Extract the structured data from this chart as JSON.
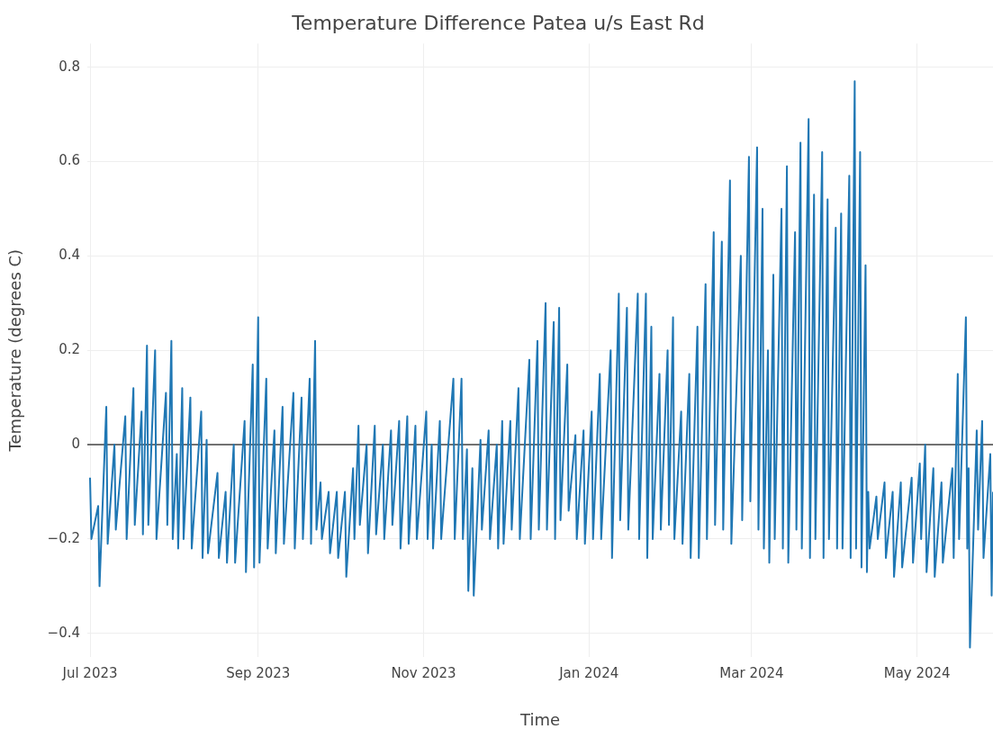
{
  "chart_data": {
    "type": "line",
    "title": "Temperature Difference Patea u/s East Rd",
    "xlabel": "Time",
    "ylabel": "Temperature (degrees C)",
    "xlim": [
      "2023-06-30",
      "2024-05-29"
    ],
    "xticks": [
      {
        "value": "2023-07-01",
        "label": "Jul 2023"
      },
      {
        "value": "2023-09-01",
        "label": "Sep 2023"
      },
      {
        "value": "2023-11-01",
        "label": "Nov 2023"
      },
      {
        "value": "2024-01-01",
        "label": "Jan 2024"
      },
      {
        "value": "2024-03-01",
        "label": "Mar 2024"
      },
      {
        "value": "2024-05-01",
        "label": "May 2024"
      }
    ],
    "ylim": [
      -0.45,
      0.85
    ],
    "yticks": [
      {
        "value": -0.4,
        "label": "−0.4"
      },
      {
        "value": -0.2,
        "label": "−0.2"
      },
      0,
      0.2,
      0.4,
      0.6,
      0.8
    ],
    "grid": true,
    "legend": false,
    "marker": "none",
    "line_style": "solid",
    "ref_lines": [
      {
        "axis": "y",
        "value": 0,
        "color": "#444444"
      }
    ],
    "series": [
      {
        "color": "#1f77b4",
        "x": [
          "2023-07-01T00:00",
          "2023-07-01T12:00",
          "2023-07-04T00:00",
          "2023-07-04T12:00",
          "2023-07-07T00:00",
          "2023-07-07T12:00",
          "2023-07-10T00:00",
          "2023-07-10T12:00",
          "2023-07-14T00:00",
          "2023-07-14T12:00",
          "2023-07-17T00:00",
          "2023-07-17T12:00",
          "2023-07-20T00:00",
          "2023-07-20T12:00",
          "2023-07-22T00:00",
          "2023-07-22T12:00",
          "2023-07-25T00:00",
          "2023-07-25T12:00",
          "2023-07-29T00:00",
          "2023-07-29T12:00",
          "2023-07-31T00:00",
          "2023-07-31T12:00",
          "2023-08-02T00:00",
          "2023-08-02T12:00",
          "2023-08-04T00:00",
          "2023-08-04T12:00",
          "2023-08-07T00:00",
          "2023-08-07T12:00",
          "2023-08-11T00:00",
          "2023-08-11T12:00",
          "2023-08-13T00:00",
          "2023-08-13T12:00",
          "2023-08-17T00:00",
          "2023-08-17T12:00",
          "2023-08-20T00:00",
          "2023-08-20T12:00",
          "2023-08-23T00:00",
          "2023-08-23T12:00",
          "2023-08-27T00:00",
          "2023-08-27T12:00",
          "2023-08-30T00:00",
          "2023-08-30T12:00",
          "2023-09-01T00:00",
          "2023-09-01T12:00",
          "2023-09-04T00:00",
          "2023-09-04T12:00",
          "2023-09-07T00:00",
          "2023-09-07T12:00",
          "2023-09-10T00:00",
          "2023-09-10T12:00",
          "2023-09-14T00:00",
          "2023-09-14T12:00",
          "2023-09-17T00:00",
          "2023-09-17T12:00",
          "2023-09-20T00:00",
          "2023-09-20T12:00",
          "2023-09-22T00:00",
          "2023-09-22T12:00",
          "2023-09-24T00:00",
          "2023-09-24T12:00",
          "2023-09-27T00:00",
          "2023-09-27T12:00",
          "2023-09-30T00:00",
          "2023-09-30T12:00",
          "2023-10-03T00:00",
          "2023-10-03T12:00",
          "2023-10-06T00:00",
          "2023-10-06T12:00",
          "2023-10-08T00:00",
          "2023-10-08T12:00",
          "2023-10-11T00:00",
          "2023-10-11T12:00",
          "2023-10-14T00:00",
          "2023-10-14T12:00",
          "2023-10-17T00:00",
          "2023-10-17T12:00",
          "2023-10-20T00:00",
          "2023-10-20T12:00",
          "2023-10-23T00:00",
          "2023-10-23T12:00",
          "2023-10-26T00:00",
          "2023-10-26T12:00",
          "2023-10-29T00:00",
          "2023-10-29T12:00",
          "2023-11-02T00:00",
          "2023-11-02T12:00",
          "2023-11-04T00:00",
          "2023-11-04T12:00",
          "2023-11-07T00:00",
          "2023-11-07T12:00",
          "2023-11-12T00:00",
          "2023-11-12T12:00",
          "2023-11-15T00:00",
          "2023-11-15T12:00",
          "2023-11-17T00:00",
          "2023-11-17T12:00",
          "2023-11-19T00:00",
          "2023-11-19T12:00",
          "2023-11-22T00:00",
          "2023-11-22T12:00",
          "2023-11-25T00:00",
          "2023-11-25T12:00",
          "2023-11-28T00:00",
          "2023-11-28T12:00",
          "2023-11-30T00:00",
          "2023-11-30T12:00",
          "2023-12-03T00:00",
          "2023-12-03T12:00",
          "2023-12-06T00:00",
          "2023-12-06T12:00",
          "2023-12-10T00:00",
          "2023-12-10T12:00",
          "2023-12-13T00:00",
          "2023-12-13T12:00",
          "2023-12-16T00:00",
          "2023-12-16T12:00",
          "2023-12-19T00:00",
          "2023-12-19T12:00",
          "2023-12-21T00:00",
          "2023-12-21T12:00",
          "2023-12-24T00:00",
          "2023-12-24T12:00",
          "2023-12-27T00:00",
          "2023-12-27T12:00",
          "2023-12-30T00:00",
          "2023-12-30T12:00",
          "2024-01-02T00:00",
          "2024-01-02T12:00",
          "2024-01-05T00:00",
          "2024-01-05T12:00",
          "2024-01-09T00:00",
          "2024-01-09T12:00",
          "2024-01-12T00:00",
          "2024-01-12T12:00",
          "2024-01-15T00:00",
          "2024-01-15T12:00",
          "2024-01-19T00:00",
          "2024-01-19T12:00",
          "2024-01-22T00:00",
          "2024-01-22T12:00",
          "2024-01-24T00:00",
          "2024-01-24T12:00",
          "2024-01-27T00:00",
          "2024-01-27T12:00",
          "2024-01-30T00:00",
          "2024-01-30T12:00",
          "2024-02-01T00:00",
          "2024-02-01T12:00",
          "2024-02-04T00:00",
          "2024-02-04T12:00",
          "2024-02-07T00:00",
          "2024-02-07T12:00",
          "2024-02-10T00:00",
          "2024-02-10T12:00",
          "2024-02-13T00:00",
          "2024-02-13T12:00",
          "2024-02-16T00:00",
          "2024-02-16T12:00",
          "2024-02-19T00:00",
          "2024-02-19T12:00",
          "2024-02-22T00:00",
          "2024-02-22T12:00",
          "2024-02-26T00:00",
          "2024-02-26T12:00",
          "2024-02-29T00:00",
          "2024-02-29T12:00",
          "2024-03-03T00:00",
          "2024-03-03T12:00",
          "2024-03-05T00:00",
          "2024-03-05T12:00",
          "2024-03-07T00:00",
          "2024-03-07T12:00",
          "2024-03-09T00:00",
          "2024-03-09T12:00",
          "2024-03-12T00:00",
          "2024-03-12T12:00",
          "2024-03-14T00:00",
          "2024-03-14T12:00",
          "2024-03-17T00:00",
          "2024-03-17T12:00",
          "2024-03-19T00:00",
          "2024-03-19T12:00",
          "2024-03-22T00:00",
          "2024-03-22T12:00",
          "2024-03-24T00:00",
          "2024-03-24T12:00",
          "2024-03-27T00:00",
          "2024-03-27T12:00",
          "2024-03-29T00:00",
          "2024-03-29T12:00",
          "2024-04-01T00:00",
          "2024-04-01T12:00",
          "2024-04-03T00:00",
          "2024-04-03T12:00",
          "2024-04-06T00:00",
          "2024-04-06T12:00",
          "2024-04-08T00:00",
          "2024-04-08T12:00",
          "2024-04-10T00:00",
          "2024-04-10T12:00",
          "2024-04-12T00:00",
          "2024-04-12T12:00",
          "2024-04-13T00:00",
          "2024-04-13T12:00",
          "2024-04-16T00:00",
          "2024-04-16T12:00",
          "2024-04-19T00:00",
          "2024-04-19T12:00",
          "2024-04-22T00:00",
          "2024-04-22T12:00",
          "2024-04-25T00:00",
          "2024-04-25T12:00",
          "2024-04-29T00:00",
          "2024-04-29T12:00",
          "2024-05-02T00:00",
          "2024-05-02T12:00",
          "2024-05-04T00:00",
          "2024-05-04T12:00",
          "2024-05-07T00:00",
          "2024-05-07T12:00",
          "2024-05-10T00:00",
          "2024-05-10T12:00",
          "2024-05-14T00:00",
          "2024-05-14T12:00",
          "2024-05-16T00:00",
          "2024-05-16T12:00",
          "2024-05-19T00:00",
          "2024-05-19T12:00",
          "2024-05-20T00:00",
          "2024-05-20T12:00",
          "2024-05-23T00:00",
          "2024-05-23T12:00",
          "2024-05-25T00:00",
          "2024-05-25T12:00",
          "2024-05-28T00:00",
          "2024-05-28T12:00",
          "2024-05-29T00:00"
        ],
        "values": [
          -0.07,
          -0.2,
          -0.13,
          -0.3,
          0.08,
          -0.21,
          0.0,
          -0.18,
          0.06,
          -0.2,
          0.12,
          -0.17,
          0.07,
          -0.19,
          0.21,
          -0.17,
          0.2,
          -0.2,
          0.11,
          -0.17,
          0.22,
          -0.2,
          -0.02,
          -0.22,
          0.12,
          -0.2,
          0.1,
          -0.22,
          0.07,
          -0.24,
          0.01,
          -0.23,
          -0.06,
          -0.24,
          -0.1,
          -0.25,
          0.0,
          -0.25,
          0.05,
          -0.27,
          0.17,
          -0.26,
          0.27,
          -0.25,
          0.14,
          -0.22,
          0.03,
          -0.23,
          0.08,
          -0.21,
          0.11,
          -0.22,
          0.1,
          -0.2,
          0.14,
          -0.21,
          0.22,
          -0.18,
          -0.08,
          -0.2,
          -0.1,
          -0.23,
          -0.1,
          -0.24,
          -0.1,
          -0.28,
          -0.05,
          -0.2,
          0.04,
          -0.17,
          0.0,
          -0.23,
          0.04,
          -0.19,
          0.0,
          -0.2,
          0.03,
          -0.17,
          0.05,
          -0.22,
          0.06,
          -0.21,
          0.04,
          -0.2,
          0.07,
          -0.2,
          0.0,
          -0.22,
          0.05,
          -0.2,
          0.14,
          -0.2,
          0.14,
          -0.2,
          -0.01,
          -0.31,
          -0.05,
          -0.32,
          0.01,
          -0.18,
          0.03,
          -0.2,
          0.0,
          -0.22,
          0.05,
          -0.21,
          0.05,
          -0.18,
          0.12,
          -0.2,
          0.18,
          -0.2,
          0.22,
          -0.18,
          0.3,
          -0.18,
          0.26,
          -0.2,
          0.29,
          -0.16,
          0.17,
          -0.14,
          0.02,
          -0.2,
          0.03,
          -0.21,
          0.07,
          -0.2,
          0.15,
          -0.2,
          0.2,
          -0.24,
          0.32,
          -0.16,
          0.29,
          -0.18,
          0.32,
          -0.2,
          0.32,
          -0.24,
          0.25,
          -0.2,
          0.15,
          -0.18,
          0.2,
          -0.17,
          0.27,
          -0.2,
          0.07,
          -0.21,
          0.15,
          -0.24,
          0.25,
          -0.24,
          0.34,
          -0.2,
          0.45,
          -0.17,
          0.43,
          -0.18,
          0.56,
          -0.21,
          0.4,
          -0.16,
          0.61,
          -0.12,
          0.63,
          -0.18,
          0.5,
          -0.22,
          0.2,
          -0.25,
          0.36,
          -0.2,
          0.5,
          -0.22,
          0.59,
          -0.25,
          0.45,
          -0.18,
          0.64,
          -0.22,
          0.69,
          -0.24,
          0.53,
          -0.2,
          0.62,
          -0.24,
          0.52,
          -0.2,
          0.46,
          -0.22,
          0.49,
          -0.22,
          0.57,
          -0.24,
          0.77,
          -0.22,
          0.62,
          -0.26,
          0.38,
          -0.27,
          -0.1,
          -0.22,
          -0.11,
          -0.2,
          -0.08,
          -0.24,
          -0.1,
          -0.28,
          -0.08,
          -0.26,
          -0.07,
          -0.25,
          -0.04,
          -0.2,
          0.0,
          -0.27,
          -0.05,
          -0.28,
          -0.08,
          -0.25,
          -0.05,
          -0.24,
          0.15,
          -0.2,
          0.27,
          -0.22,
          -0.05,
          -0.43,
          0.03,
          -0.18,
          0.05,
          -0.24,
          -0.02,
          -0.32,
          -0.1
        ]
      }
    ]
  }
}
